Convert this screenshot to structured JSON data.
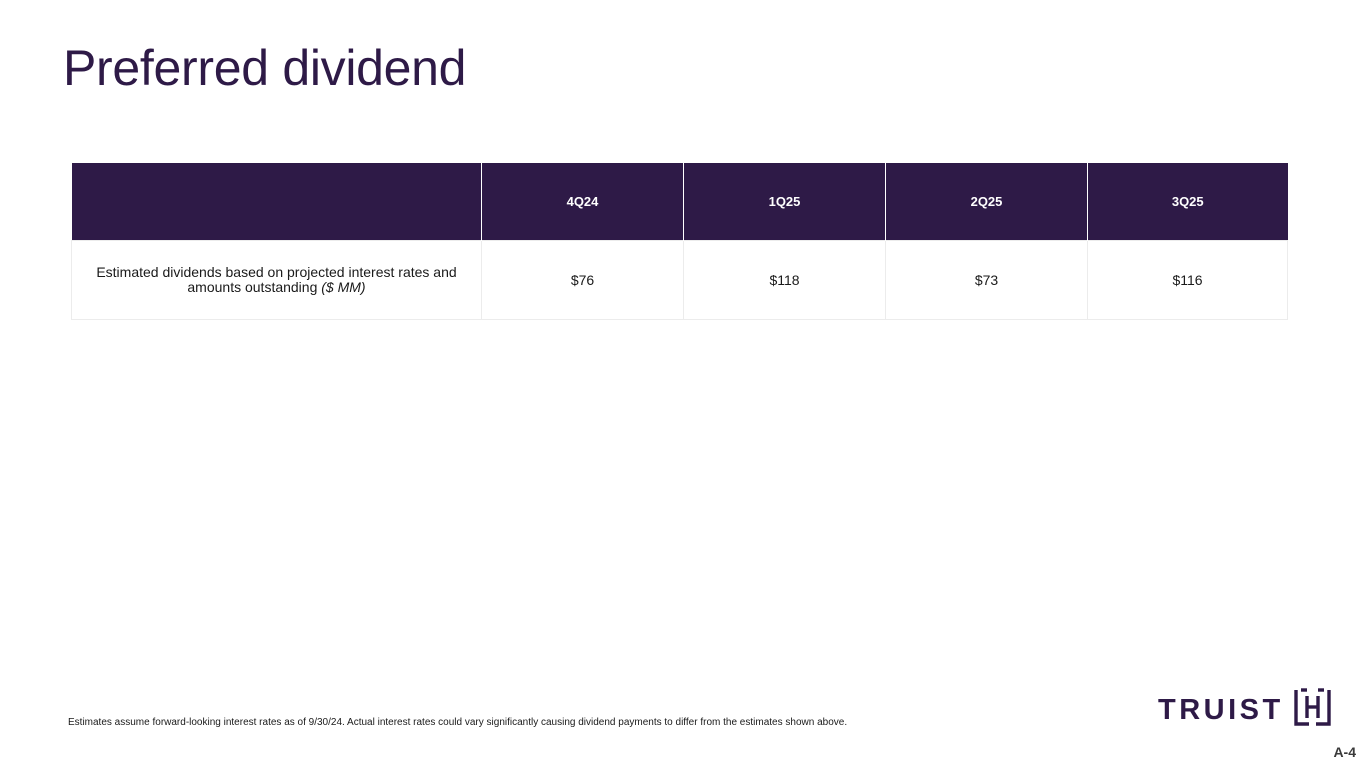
{
  "slide": {
    "title": "Preferred dividend",
    "page_number": "A-4"
  },
  "table": {
    "corner": "",
    "columns": [
      "4Q24",
      "1Q25",
      "2Q25",
      "3Q25"
    ],
    "row": {
      "label": "Estimated dividends based on projected interest rates and amounts outstanding",
      "unit": "($ MM)",
      "values": [
        "$76",
        "$118",
        "$73",
        "$116"
      ]
    }
  },
  "footnote": "Estimates assume forward-looking interest rates as of 9/30/24. Actual interest rates could vary significantly causing dividend payments to differ from the estimates shown above.",
  "logo": {
    "text": "TRUIST",
    "icon": "truist-mark-icon",
    "color": "#2e1a47"
  },
  "colors": {
    "header_bg": "#2e1a47",
    "title": "#2e1a47"
  }
}
